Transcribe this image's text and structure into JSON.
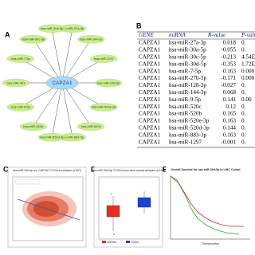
{
  "panels": {
    "a": {
      "letter": "A",
      "center": "CAPZA1",
      "nodes": [
        "hsa-miR-27a-3p",
        "hsa-miR-144-3p",
        "hsa-miR-1297",
        "hsa-miR-128-3p",
        "hsa-miR-520e-3p",
        "hsa-miR-520c",
        "hsa-miR-883-3p",
        "hsa-miR-520d-3p",
        "hsa-miR-520b",
        "hsa-miR-9-5p",
        "hsa-miR-421",
        "hsa-miR-7-5p",
        "hsa-miR-30c-5p",
        "hsa-miR-30a-5p"
      ]
    },
    "b": {
      "letter": "B",
      "columns": [
        "GENE",
        "miRNA",
        "R-value",
        "P-value"
      ],
      "rows": [
        [
          "CAPZA1",
          "hsa-miR-27a-3p",
          "0.018",
          "0."
        ],
        [
          "CAPZA1",
          "hsa-miR-30a-5p",
          "-0.055",
          "0."
        ],
        [
          "CAPZA1",
          "hsa-miR-30c-5p",
          "-0.213",
          "4.54E"
        ],
        [
          "CAPZA1",
          "hsa-miR-30d-5p",
          "-0.353",
          "1.72E"
        ],
        [
          "CAPZA1",
          "hsa-miR-7-5p",
          "0.163",
          "0.000"
        ],
        [
          "CAPZA1",
          "hsa-miR-27b-3p",
          "-0.171",
          "0.000"
        ],
        [
          "CAPZA1",
          "hsa-miR-128-3p",
          "-0.027",
          "0."
        ],
        [
          "CAPZA1",
          "hsa-miR-144-3p",
          "0.068",
          "0."
        ],
        [
          "CAPZA1",
          "hsa-miR-9-5p",
          "0.141",
          "0.00"
        ],
        [
          "CAPZA1",
          "hsa-miR-520c",
          "0.12",
          "0."
        ],
        [
          "CAPZA1",
          "hsa-miR-520b",
          "0.165",
          "0."
        ],
        [
          "CAPZA1",
          "hsa-miR-520e-3p",
          "0.163",
          "0."
        ],
        [
          "CAPZA1",
          "hsa-miR-520d-3p",
          "0.144",
          "0."
        ],
        [
          "CAPZA1",
          "hsa-miR-883-3p",
          "0.163",
          "0."
        ],
        [
          "CAPZA1",
          "hsa-miR-1297",
          "-0.001",
          "0."
        ]
      ]
    },
    "c": {
      "letter": "C",
      "title": "hsa-miR-30d-5p vs. CAPZA1 TCGA correlation (LIHC)"
    },
    "d": {
      "letter": "D",
      "title": "hsa-miR-30d-5p TCGA tumor and normal samples (LIHC)",
      "legend": [
        "Normal",
        "Tumor"
      ]
    },
    "e": {
      "letter": "E",
      "title": "Overall Survival for hsa-miR-30d-5p in LIHC Cohort",
      "x_label": "Time(months)"
    }
  }
}
